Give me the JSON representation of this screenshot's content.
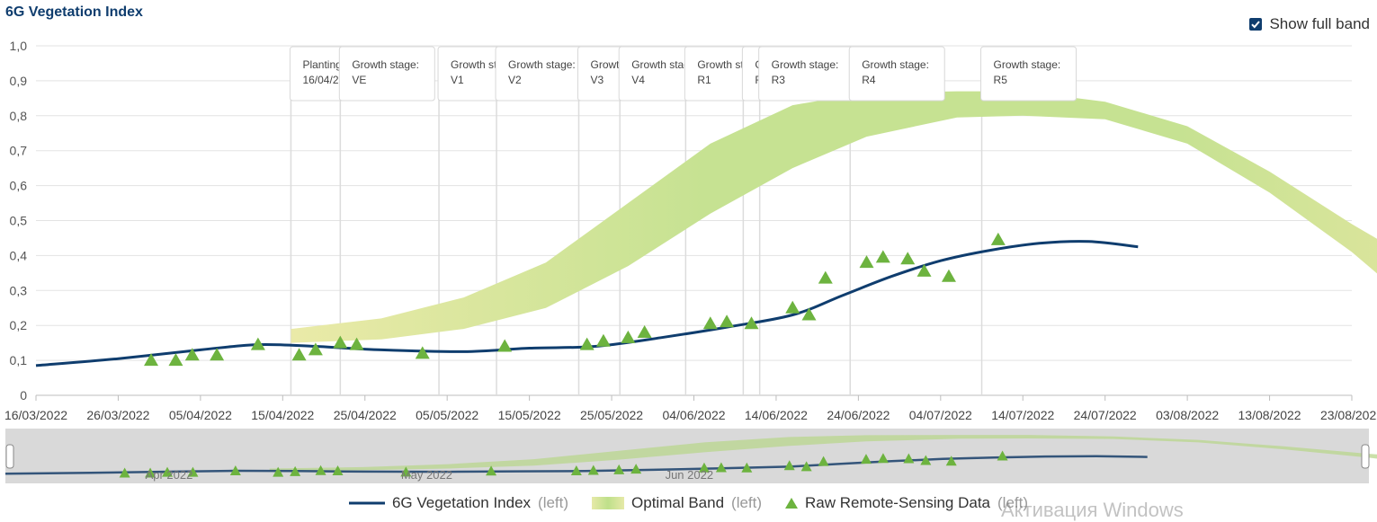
{
  "chart_data": {
    "type": "line",
    "title": "6G Vegetation Index",
    "toggle_label": "Show full band",
    "toggle_checked": true,
    "ylim": [
      0,
      1.0
    ],
    "y_ticks": [
      "0",
      "0,1",
      "0,2",
      "0,3",
      "0,4",
      "0,5",
      "0,6",
      "0,7",
      "0,8",
      "0,9",
      "1,0"
    ],
    "x_start": "2022-03-16",
    "x_end": "2022-08-23",
    "x_ticks": [
      "16/03/2022",
      "26/03/2022",
      "05/04/2022",
      "15/04/2022",
      "25/04/2022",
      "05/05/2022",
      "15/05/2022",
      "25/05/2022",
      "04/06/2022",
      "14/06/2022",
      "24/06/2022",
      "04/07/2022",
      "14/07/2022",
      "24/07/2022",
      "03/08/2022",
      "13/08/2022",
      "23/08/2022"
    ],
    "stage_lines_days": [
      31,
      37,
      49,
      56,
      66,
      71,
      79,
      86,
      88,
      99,
      115
    ],
    "stage_labels": [
      {
        "day": 31,
        "lines": [
          "Planting date:",
          "16/04/2022"
        ]
      },
      {
        "day": 37,
        "lines": [
          "Growth stage:",
          "VE"
        ]
      },
      {
        "day": 49,
        "lines": [
          "Growth stage:",
          "V1"
        ]
      },
      {
        "day": 56,
        "lines": [
          "Growth stage:",
          "V2"
        ]
      },
      {
        "day": 66,
        "lines": [
          "Growth stage:",
          "V3"
        ]
      },
      {
        "day": 71,
        "lines": [
          "Growth stage:",
          "V4"
        ]
      },
      {
        "day": 79,
        "lines": [
          "Growth stage:",
          "R1"
        ]
      },
      {
        "day": 86,
        "lines": [
          "Growth stage:",
          "R2"
        ]
      },
      {
        "day": 88,
        "lines": [
          "Growth stage:",
          "R3"
        ]
      },
      {
        "day": 99,
        "lines": [
          "Growth stage:",
          "R4"
        ]
      },
      {
        "day": 115,
        "lines": [
          "Growth stage:",
          "R5"
        ]
      }
    ],
    "series": [
      {
        "name": "6G Vegetation Index",
        "axis": "left",
        "color": "#0f3d6e",
        "points": [
          [
            0,
            0.085
          ],
          [
            10,
            0.105
          ],
          [
            20,
            0.13
          ],
          [
            27,
            0.145
          ],
          [
            34,
            0.14
          ],
          [
            42,
            0.13
          ],
          [
            52,
            0.125
          ],
          [
            60,
            0.135
          ],
          [
            68,
            0.14
          ],
          [
            76,
            0.165
          ],
          [
            84,
            0.195
          ],
          [
            92,
            0.23
          ],
          [
            98,
            0.285
          ],
          [
            104,
            0.34
          ],
          [
            110,
            0.385
          ],
          [
            116,
            0.415
          ],
          [
            122,
            0.435
          ],
          [
            128,
            0.44
          ],
          [
            134,
            0.425
          ]
        ]
      },
      {
        "name": "Optimal Band",
        "axis": "left",
        "color": "#b7d97a",
        "upper": [
          [
            31,
            0.19
          ],
          [
            42,
            0.22
          ],
          [
            52,
            0.28
          ],
          [
            62,
            0.38
          ],
          [
            72,
            0.55
          ],
          [
            82,
            0.72
          ],
          [
            92,
            0.83
          ],
          [
            101,
            0.865
          ],
          [
            112,
            0.87
          ],
          [
            120,
            0.87
          ],
          [
            130,
            0.84
          ],
          [
            140,
            0.77
          ],
          [
            150,
            0.64
          ],
          [
            160,
            0.49
          ],
          [
            168,
            0.38
          ],
          [
            175,
            0.32
          ]
        ],
        "lower": [
          [
            31,
            0.15
          ],
          [
            42,
            0.16
          ],
          [
            52,
            0.19
          ],
          [
            62,
            0.25
          ],
          [
            72,
            0.37
          ],
          [
            82,
            0.52
          ],
          [
            92,
            0.65
          ],
          [
            101,
            0.74
          ],
          [
            112,
            0.795
          ],
          [
            120,
            0.8
          ],
          [
            130,
            0.79
          ],
          [
            140,
            0.72
          ],
          [
            150,
            0.58
          ],
          [
            160,
            0.41
          ],
          [
            168,
            0.25
          ],
          [
            175,
            0.13
          ]
        ]
      },
      {
        "name": "Raw Remote-Sensing Data",
        "axis": "left",
        "color": "#6db33f",
        "points": [
          [
            14,
            0.1
          ],
          [
            17,
            0.1
          ],
          [
            19,
            0.115
          ],
          [
            22,
            0.115
          ],
          [
            27,
            0.145
          ],
          [
            32,
            0.115
          ],
          [
            34,
            0.13
          ],
          [
            37,
            0.15
          ],
          [
            39,
            0.145
          ],
          [
            47,
            0.12
          ],
          [
            57,
            0.14
          ],
          [
            67,
            0.145
          ],
          [
            69,
            0.155
          ],
          [
            72,
            0.165
          ],
          [
            74,
            0.18
          ],
          [
            82,
            0.205
          ],
          [
            84,
            0.21
          ],
          [
            87,
            0.205
          ],
          [
            92,
            0.25
          ],
          [
            94,
            0.23
          ],
          [
            96,
            0.335
          ],
          [
            101,
            0.38
          ],
          [
            103,
            0.395
          ],
          [
            106,
            0.39
          ],
          [
            108,
            0.355
          ],
          [
            111,
            0.34
          ],
          [
            117,
            0.445
          ]
        ]
      }
    ],
    "navigator": {
      "month_labels": [
        "Apr 2022",
        "May 2022",
        "Jun 2022"
      ]
    },
    "legend": {
      "side_label": "(left)"
    }
  },
  "watermark": "Активация Windows"
}
